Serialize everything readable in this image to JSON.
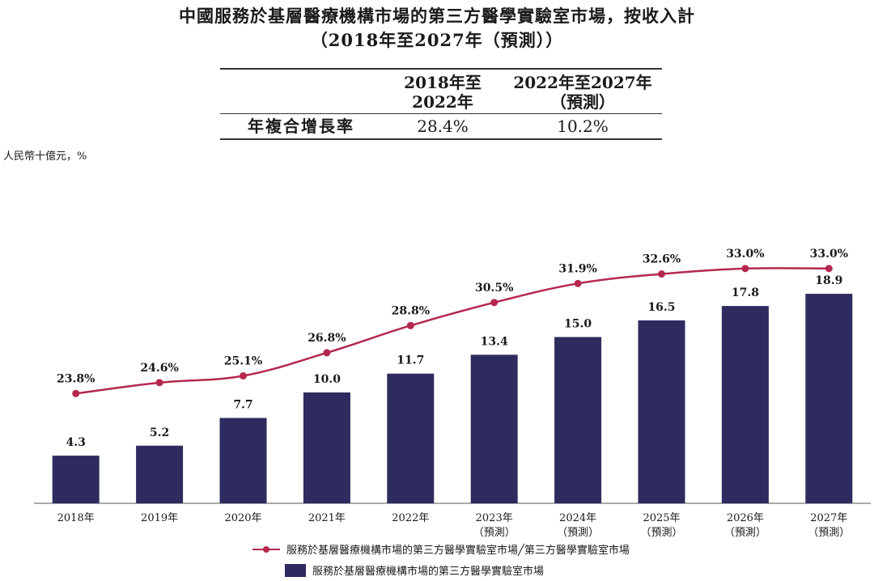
{
  "title_line1": "中國服務於基層醫療機構市場的第三方醫學實驗室市場，按收入計",
  "title_line2": "（2018年至2027年（預測））",
  "cagr_table": {
    "header_col1_line1": "2018年至",
    "header_col1_line2": "2022年",
    "header_col2_line1": "2022年至2027年",
    "header_col2_line2": "（預測）",
    "row_label": "年複合增長率",
    "value_col1": "28.4%",
    "value_col2": "10.2%"
  },
  "unit_label": "人民幣十億元，%",
  "legend": {
    "line_label": "服務於基層醫療機構市場的第三方醫學實驗室市場╱第三方醫學實驗室市場",
    "bar_label": "服務於基層醫療機構市場的第三方醫學實驗室市場"
  },
  "chart_data": {
    "type": "bar",
    "categories": [
      "2018年",
      "2019年",
      "2020年",
      "2021年",
      "2022年",
      "2023年",
      "2024年",
      "2025年",
      "2026年",
      "2027年"
    ],
    "category_sublabels": [
      "",
      "",
      "",
      "",
      "",
      "（預測）",
      "（預測）",
      "（預測）",
      "（預測）",
      "（預測）"
    ],
    "series": [
      {
        "name": "服務於基層醫療機構市場的第三方醫學實驗室市場",
        "kind": "bar",
        "values": [
          4.3,
          5.2,
          7.7,
          10.0,
          11.7,
          13.4,
          15.0,
          16.5,
          17.8,
          18.9
        ],
        "labels": [
          "4.3",
          "5.2",
          "7.7",
          "10.0",
          "11.7",
          "13.4",
          "15.0",
          "16.5",
          "17.8",
          "18.9"
        ],
        "color": "#2e2b5f"
      },
      {
        "name": "服務於基層醫療機構市場的第三方醫學實驗室市場╱第三方醫學實驗室市場",
        "kind": "line",
        "values": [
          23.8,
          24.6,
          25.1,
          26.8,
          28.8,
          30.5,
          31.9,
          32.6,
          33.0,
          33.0
        ],
        "labels": [
          "23.8%",
          "24.6%",
          "25.1%",
          "26.8%",
          "28.8%",
          "30.5%",
          "31.9%",
          "32.6%",
          "33.0%",
          "33.0%"
        ],
        "color": "#b5284e"
      }
    ],
    "bar_axis_max": 22,
    "line_axis_range": [
      20.6,
      34.6
    ],
    "grid": false,
    "legend_position": "bottom"
  }
}
